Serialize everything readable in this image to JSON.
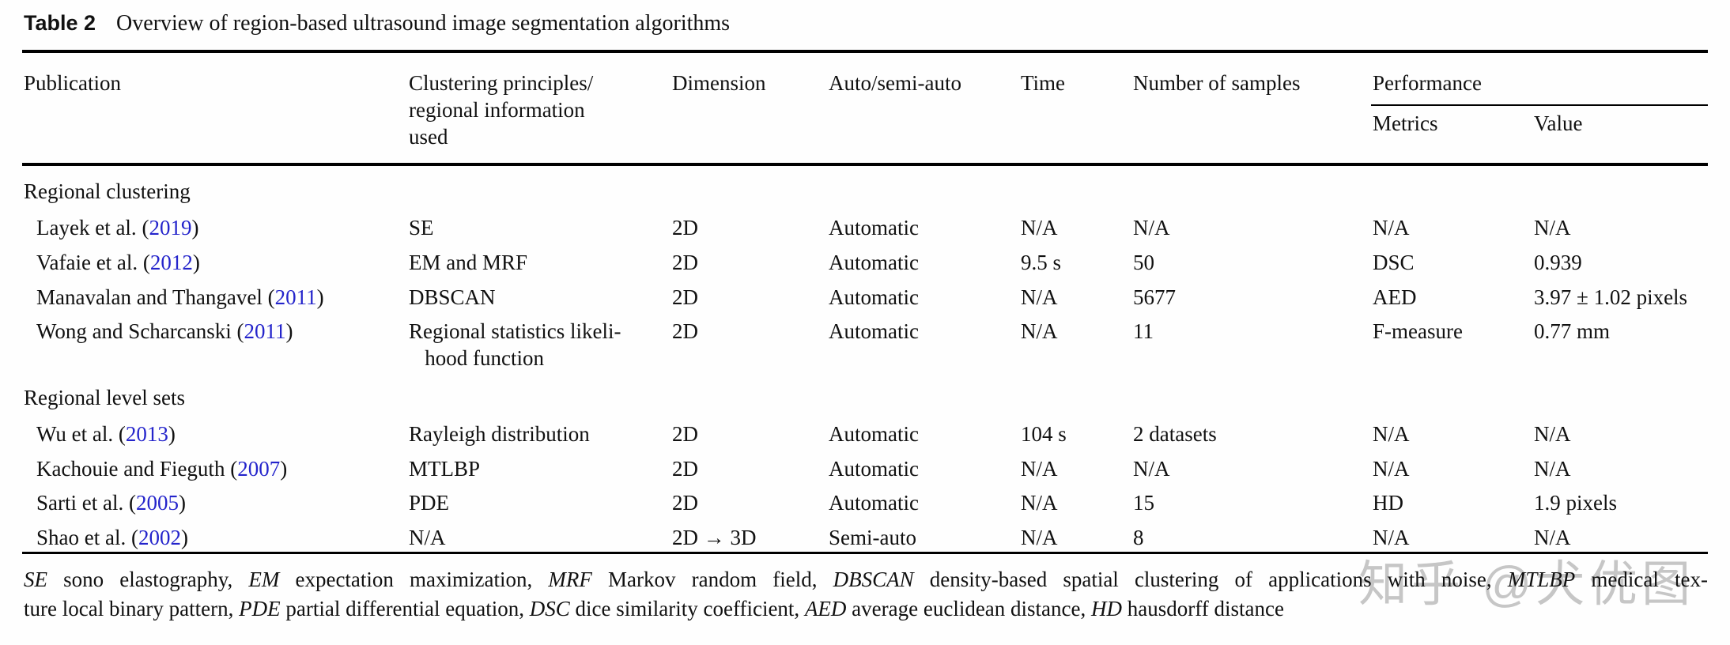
{
  "colors": {
    "link_blue": "#2424cb",
    "rule_black": "#000000",
    "watermark_gray": "#9a9a9a"
  },
  "caption": {
    "label": "Table 2",
    "text": "Overview of region-based ultrasound image segmentation algorithms"
  },
  "table": {
    "columns": {
      "publication": "Publication",
      "clustering": "Clustering principles/\nregional information\nused",
      "dimension": "Dimension",
      "auto": "Auto/semi-auto",
      "time": "Time",
      "samples": "Number of samples",
      "performance": "Performance",
      "metrics": "Metrics",
      "value": "Value"
    },
    "sections": [
      {
        "label": "Regional clustering",
        "rows": [
          {
            "pub": "Layek et al.",
            "year": "2019",
            "clustering": "SE",
            "dimension": "2D",
            "auto": "Automatic",
            "time": "N/A",
            "samples": "N/A",
            "metrics": "N/A",
            "value": "N/A"
          },
          {
            "pub": "Vafaie et al.",
            "year": "2012",
            "clustering": "EM and MRF",
            "dimension": "2D",
            "auto": "Automatic",
            "time": "9.5 s",
            "samples": "50",
            "metrics": "DSC",
            "value": "0.939"
          },
          {
            "pub": "Manavalan and Thangavel",
            "year": "2011",
            "clustering": "DBSCAN",
            "dimension": "2D",
            "auto": "Automatic",
            "time": "N/A",
            "samples": "5677",
            "metrics": "AED",
            "value": "3.97 ± 1.02 pixels"
          },
          {
            "pub": "Wong and Scharcanski",
            "year": "2011",
            "clustering": "Regional statistics likeli-\n   hood function",
            "dimension": "2D",
            "auto": "Automatic",
            "time": "N/A",
            "samples": "11",
            "metrics": "F-measure",
            "value": "0.77 mm"
          }
        ]
      },
      {
        "label": "Regional level sets",
        "rows": [
          {
            "pub": "Wu et al.",
            "year": "2013",
            "clustering": "Rayleigh distribution",
            "dimension": "2D",
            "auto": "Automatic",
            "time": "104 s",
            "samples": "2 datasets",
            "metrics": "N/A",
            "value": "N/A"
          },
          {
            "pub": "Kachouie and Fieguth",
            "year": "2007",
            "clustering": "MTLBP",
            "dimension": "2D",
            "auto": "Automatic",
            "time": "N/A",
            "samples": "N/A",
            "metrics": "N/A",
            "value": "N/A"
          },
          {
            "pub": "Sarti et al.",
            "year": "2005",
            "clustering": "PDE",
            "dimension": "2D",
            "auto": "Automatic",
            "time": "N/A",
            "samples": "15",
            "metrics": "HD",
            "value": "1.9 pixels"
          },
          {
            "pub": "Shao et al.",
            "year": "2002",
            "clustering": "N/A",
            "dimension": "2D → 3D",
            "auto": "Semi-auto",
            "time": "N/A",
            "samples": "8",
            "metrics": "N/A",
            "value": "N/A"
          }
        ]
      }
    ]
  },
  "footer": {
    "lines": [
      [
        {
          "style": "i",
          "text": "SE"
        },
        {
          "style": "r",
          "text": " sono elastography, "
        },
        {
          "style": "i",
          "text": "EM"
        },
        {
          "style": "r",
          "text": " expectation maximization, "
        },
        {
          "style": "i",
          "text": "MRF"
        },
        {
          "style": "r",
          "text": " Markov random field, "
        },
        {
          "style": "i",
          "text": "DBSCAN"
        },
        {
          "style": "r",
          "text": " density-based spatial clustering of applications with noise, "
        },
        {
          "style": "i",
          "text": "MTLBP"
        },
        {
          "style": "r",
          "text": " medical tex-"
        }
      ],
      [
        {
          "style": "r",
          "text": "ture local binary pattern, "
        },
        {
          "style": "i",
          "text": "PDE"
        },
        {
          "style": "r",
          "text": " partial differential equation, "
        },
        {
          "style": "i",
          "text": "DSC"
        },
        {
          "style": "r",
          "text": " dice similarity coefficient, "
        },
        {
          "style": "i",
          "text": "AED"
        },
        {
          "style": "r",
          "text": " average euclidean distance, "
        },
        {
          "style": "i",
          "text": "HD"
        },
        {
          "style": "r",
          "text": " hausdorff distance"
        }
      ]
    ]
  },
  "watermark": {
    "text": "知乎 @犬优图"
  }
}
